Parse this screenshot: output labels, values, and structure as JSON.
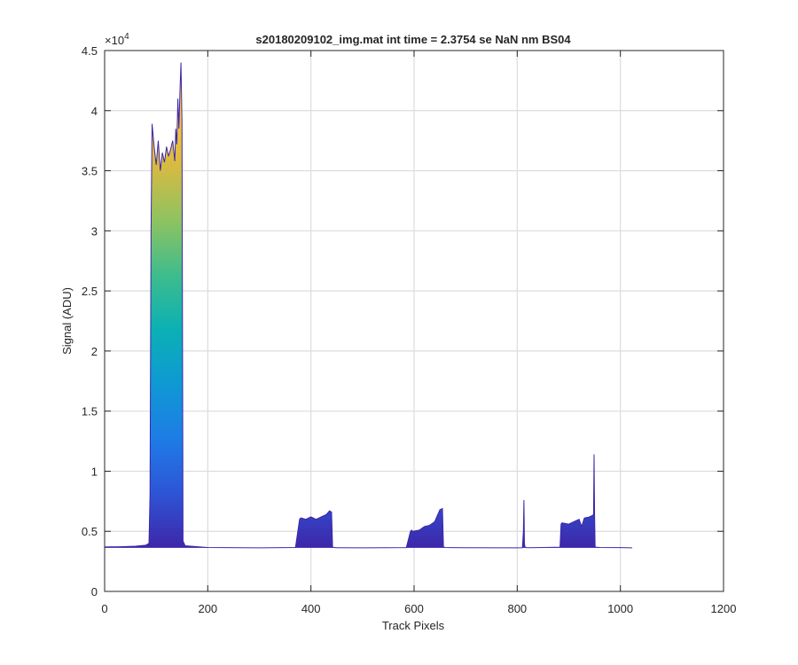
{
  "chart_data": {
    "type": "area",
    "title": "s20180209102_img.mat int time = 2.3754 se  NaN nm BS04",
    "xlabel": "Track Pixels",
    "ylabel": "Signal (ADU)",
    "xlim": [
      0,
      1200
    ],
    "ylim": [
      0,
      45000
    ],
    "xticks": [
      0,
      200,
      400,
      600,
      800,
      1000,
      1200
    ],
    "xtick_labels": [
      "0",
      "200",
      "400",
      "600",
      "800",
      "1000",
      "1200"
    ],
    "yticks": [
      0,
      5000,
      10000,
      15000,
      20000,
      25000,
      30000,
      35000,
      40000,
      45000
    ],
    "ytick_labels": [
      "0",
      "0.5",
      "1",
      "1.5",
      "2",
      "2.5",
      "3",
      "3.5",
      "4",
      "4.5"
    ],
    "y_exponent_label": "×10",
    "y_exponent_power": "4",
    "grid": true,
    "colormap": [
      "#3e26a8",
      "#2e54d6",
      "#1e7ce6",
      "#0f99d3",
      "#0bb0b5",
      "#3fbc8c",
      "#8ec360",
      "#d7ba42",
      "#fbc83a",
      "#f9fb15"
    ],
    "series": [
      {
        "x": [
          0,
          30,
          60,
          80,
          86,
          88,
          90,
          92,
          96,
          100,
          104,
          108,
          112,
          116,
          120,
          124,
          128,
          132,
          136,
          138,
          140,
          142,
          144,
          146,
          148,
          150,
          152,
          156,
          200,
          300,
          370,
          378,
          380,
          382,
          390,
          400,
          410,
          420,
          430,
          436,
          440,
          442,
          444,
          450,
          500,
          585,
          593,
          595,
          597,
          610,
          620,
          630,
          640,
          650,
          655,
          657,
          660,
          700,
          800,
          810,
          812,
          813,
          814,
          815,
          817,
          820,
          850,
          883,
          885,
          887,
          900,
          910,
          920,
          925,
          930,
          940,
          945,
          948,
          949,
          950,
          951,
          952,
          960,
          1000,
          1023
        ],
        "y": [
          3700,
          3720,
          3760,
          3850,
          4000,
          8000,
          30000,
          38900,
          37000,
          35500,
          37500,
          35000,
          36500,
          35700,
          37000,
          36200,
          36800,
          37500,
          35800,
          38500,
          37200,
          41000,
          38500,
          41500,
          44000,
          39000,
          4200,
          3800,
          3650,
          3620,
          3650,
          6000,
          6100,
          6100,
          6000,
          6200,
          6000,
          6200,
          6400,
          6700,
          6600,
          3700,
          3650,
          3630,
          3620,
          3640,
          5000,
          5100,
          5000,
          5100,
          5400,
          5500,
          5800,
          6800,
          6900,
          3700,
          3650,
          3630,
          3620,
          3630,
          5000,
          7600,
          4000,
          3700,
          3650,
          3630,
          3650,
          3680,
          5600,
          5700,
          5600,
          5800,
          6000,
          5400,
          6100,
          6200,
          6300,
          6400,
          11400,
          6400,
          3750,
          3680,
          3650,
          3640,
          3620
        ]
      }
    ]
  }
}
